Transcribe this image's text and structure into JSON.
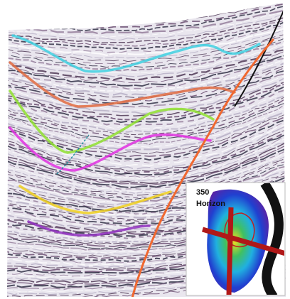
{
  "inset": {
    "title_lines": [
      "350",
      "Horizon"
    ]
  }
}
